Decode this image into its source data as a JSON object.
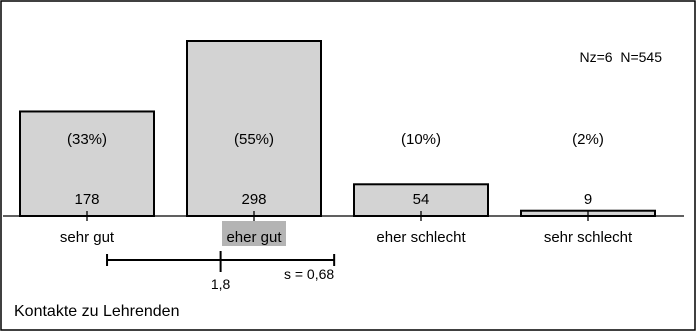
{
  "chart_data": {
    "type": "bar",
    "title": "Kontakte zu Lehrenden",
    "annotation": "Nz=6  N=545",
    "categories": [
      "sehr gut",
      "eher gut",
      "eher schlecht",
      "sehr schlecht"
    ],
    "values": [
      178,
      298,
      54,
      9
    ],
    "percent_labels": [
      "(33%)",
      "(55%)",
      "(10%)",
      "(2%)"
    ],
    "highlighted_category": "eher gut",
    "ylim": [
      0,
      298
    ],
    "grid": false,
    "mean": 1.8,
    "mean_label": "1,8",
    "sd": 0.68,
    "sd_label": "s = 0,68",
    "colors": {
      "bar": "#d3d3d3",
      "highlight": "#b4b4b4"
    }
  }
}
